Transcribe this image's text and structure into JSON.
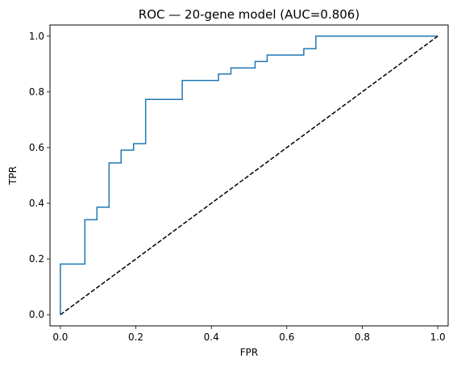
{
  "chart_data": {
    "type": "line",
    "title": "ROC — 20-gene model (AUC=0.806)",
    "xlabel": "FPR",
    "ylabel": "TPR",
    "xlim": [
      -0.0275,
      1.0275
    ],
    "ylim": [
      -0.04,
      1.04
    ],
    "xticks": [
      0.0,
      0.2,
      0.4,
      0.6,
      0.8,
      1.0
    ],
    "yticks": [
      0.0,
      0.2,
      0.4,
      0.6,
      0.8,
      1.0
    ],
    "xtick_labels": [
      "0.0",
      "0.2",
      "0.4",
      "0.6",
      "0.8",
      "1.0"
    ],
    "ytick_labels": [
      "0.0",
      "0.2",
      "0.4",
      "0.6",
      "0.8",
      "1.0"
    ],
    "grid": false,
    "series": [
      {
        "style": "solid",
        "color": "#1f77b4",
        "x": [
          0.0,
          0.0,
          0.065,
          0.065,
          0.097,
          0.097,
          0.129,
          0.129,
          0.161,
          0.161,
          0.194,
          0.194,
          0.226,
          0.226,
          0.323,
          0.323,
          0.419,
          0.419,
          0.452,
          0.452,
          0.516,
          0.516,
          0.548,
          0.548,
          0.645,
          0.645,
          0.677,
          0.677,
          1.0
        ],
        "y": [
          0.0,
          0.182,
          0.182,
          0.341,
          0.341,
          0.386,
          0.386,
          0.545,
          0.545,
          0.591,
          0.591,
          0.614,
          0.614,
          0.773,
          0.773,
          0.841,
          0.841,
          0.864,
          0.864,
          0.886,
          0.886,
          0.909,
          0.909,
          0.932,
          0.932,
          0.955,
          0.955,
          1.0,
          1.0
        ]
      },
      {
        "style": "dashed",
        "color": "#000000",
        "x": [
          0.0,
          1.0
        ],
        "y": [
          0.0,
          1.0
        ]
      }
    ]
  }
}
